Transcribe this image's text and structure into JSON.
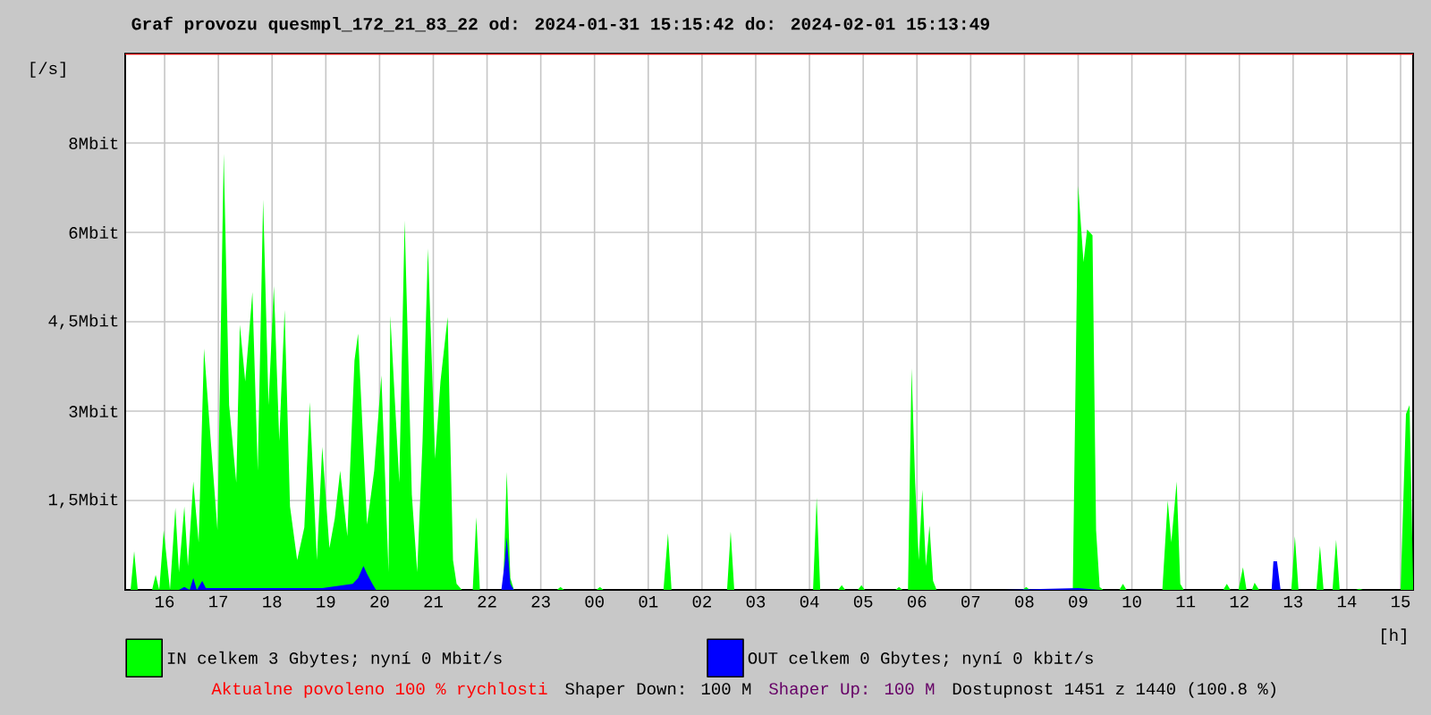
{
  "chart_data": {
    "type": "area",
    "title": "Graf provozu quesmpl_172_21_83_22 od: 2024-01-31 15:15:42 do: 2024-02-01 15:13:49",
    "xlabel": "[h]",
    "ylabel": "[/s]",
    "xlim": [
      "2024-01-31T15:16",
      "2024-02-01T15:14"
    ],
    "xticks": [
      {
        "value": "2024-01-31T16:00",
        "label": "16"
      },
      {
        "value": "2024-01-31T17:00",
        "label": "17"
      },
      {
        "value": "2024-01-31T18:00",
        "label": "18"
      },
      {
        "value": "2024-01-31T19:00",
        "label": "19"
      },
      {
        "value": "2024-01-31T20:00",
        "label": "20"
      },
      {
        "value": "2024-01-31T21:00",
        "label": "21"
      },
      {
        "value": "2024-01-31T22:00",
        "label": "22"
      },
      {
        "value": "2024-01-31T23:00",
        "label": "23"
      },
      {
        "value": "2024-02-01T00:00",
        "label": "00"
      },
      {
        "value": "2024-02-01T01:00",
        "label": "01"
      },
      {
        "value": "2024-02-01T02:00",
        "label": "02"
      },
      {
        "value": "2024-02-01T03:00",
        "label": "03"
      },
      {
        "value": "2024-02-01T04:00",
        "label": "04"
      },
      {
        "value": "2024-02-01T05:00",
        "label": "05"
      },
      {
        "value": "2024-02-01T06:00",
        "label": "06"
      },
      {
        "value": "2024-02-01T07:00",
        "label": "07"
      },
      {
        "value": "2024-02-01T08:00",
        "label": "08"
      },
      {
        "value": "2024-02-01T09:00",
        "label": "09"
      },
      {
        "value": "2024-02-01T10:00",
        "label": "10"
      },
      {
        "value": "2024-02-01T11:00",
        "label": "11"
      },
      {
        "value": "2024-02-01T12:00",
        "label": "12"
      },
      {
        "value": "2024-02-01T13:00",
        "label": "13"
      },
      {
        "value": "2024-02-01T14:00",
        "label": "14"
      },
      {
        "value": "2024-02-01T15:00",
        "label": "15"
      }
    ],
    "ylim": [
      0,
      9
    ],
    "yticks": [
      {
        "value": 1.5,
        "label": "1,5Mbit"
      },
      {
        "value": 3,
        "label": "3Mbit"
      },
      {
        "value": 4.5,
        "label": "4,5Mbit"
      },
      {
        "value": 6,
        "label": "6Mbit"
      },
      {
        "value": 7.5,
        "label": "8Mbit"
      }
    ],
    "grid": true,
    "legend": "bottom left",
    "ref_lines": [
      {
        "axis": "y",
        "value": 9,
        "color": "#ff0000"
      }
    ],
    "annotations": [
      "Aktualne povoleno 100 % rychlosti",
      "Shaper Down: 100 M",
      "Shaper Up: 100 M",
      "Dostupnost 1451 z 1440 (100.8 %)"
    ],
    "series": [
      {
        "name": "IN celkem 3 Gbytes; nyní 0 Mbit/s",
        "color": "#00ff00",
        "x": [
          "2024-01-31T15:16",
          "2024-01-31T15:22",
          "2024-01-31T15:26",
          "2024-01-31T15:30",
          "2024-01-31T15:46",
          "2024-01-31T15:50",
          "2024-01-31T15:54",
          "2024-01-31T15:59",
          "2024-01-31T16:06",
          "2024-01-31T16:12",
          "2024-01-31T16:16",
          "2024-01-31T16:22",
          "2024-01-31T16:26",
          "2024-01-31T16:32",
          "2024-01-31T16:38",
          "2024-01-31T16:44",
          "2024-01-31T16:52",
          "2024-01-31T16:59",
          "2024-01-31T17:06",
          "2024-01-31T17:12",
          "2024-01-31T17:20",
          "2024-01-31T17:24",
          "2024-01-31T17:30",
          "2024-01-31T17:38",
          "2024-01-31T17:44",
          "2024-01-31T17:50",
          "2024-01-31T17:56",
          "2024-01-31T18:02",
          "2024-01-31T18:08",
          "2024-01-31T18:14",
          "2024-01-31T18:20",
          "2024-01-31T18:28",
          "2024-01-31T18:36",
          "2024-01-31T18:42",
          "2024-01-31T18:50",
          "2024-01-31T18:56",
          "2024-01-31T19:04",
          "2024-01-31T19:10",
          "2024-01-31T19:16",
          "2024-01-31T19:24",
          "2024-01-31T19:32",
          "2024-01-31T19:36",
          "2024-01-31T19:46",
          "2024-01-31T19:54",
          "2024-01-31T20:02",
          "2024-01-31T20:10",
          "2024-01-31T20:12",
          "2024-01-31T20:22",
          "2024-01-31T20:28",
          "2024-01-31T20:36",
          "2024-01-31T20:42",
          "2024-01-31T20:48",
          "2024-01-31T20:54",
          "2024-01-31T21:02",
          "2024-01-31T21:08",
          "2024-01-31T21:16",
          "2024-01-31T21:22",
          "2024-01-31T21:26",
          "2024-01-31T21:32",
          "2024-01-31T21:44",
          "2024-01-31T21:48",
          "2024-01-31T21:52",
          "2024-01-31T22:18",
          "2024-01-31T22:22",
          "2024-01-31T22:26",
          "2024-01-31T22:30",
          "2024-01-31T23:18",
          "2024-01-31T23:22",
          "2024-01-31T23:26",
          "2024-02-01T00:02",
          "2024-02-01T00:06",
          "2024-02-01T00:10",
          "2024-02-01T01:17",
          "2024-02-01T01:22",
          "2024-02-01T01:26",
          "2024-02-01T02:28",
          "2024-02-01T02:32",
          "2024-02-01T02:36",
          "2024-02-01T04:04",
          "2024-02-01T04:08",
          "2024-02-01T04:12",
          "2024-02-01T04:32",
          "2024-02-01T04:36",
          "2024-02-01T04:40",
          "2024-02-01T04:54",
          "2024-02-01T04:58",
          "2024-02-01T05:02",
          "2024-02-01T05:36",
          "2024-02-01T05:40",
          "2024-02-01T05:44",
          "2024-02-01T05:50",
          "2024-02-01T05:54",
          "2024-02-01T05:58",
          "2024-02-01T06:02",
          "2024-02-01T06:06",
          "2024-02-01T06:10",
          "2024-02-01T06:14",
          "2024-02-01T06:18",
          "2024-02-01T06:22",
          "2024-02-01T07:58",
          "2024-02-01T08:02",
          "2024-02-01T08:06",
          "2024-02-01T08:54",
          "2024-02-01T09:00",
          "2024-02-01T09:06",
          "2024-02-01T09:10",
          "2024-02-01T09:16",
          "2024-02-01T09:20",
          "2024-02-01T09:24",
          "2024-02-01T09:28",
          "2024-02-01T09:46",
          "2024-02-01T09:50",
          "2024-02-01T09:54",
          "2024-02-01T10:34",
          "2024-02-01T10:40",
          "2024-02-01T10:44",
          "2024-02-01T10:50",
          "2024-02-01T10:54",
          "2024-02-01T10:58",
          "2024-02-01T11:42",
          "2024-02-01T11:46",
          "2024-02-01T11:50",
          "2024-02-01T11:59",
          "2024-02-01T12:04",
          "2024-02-01T12:08",
          "2024-02-01T12:14",
          "2024-02-01T12:17",
          "2024-02-01T12:22",
          "2024-02-01T12:58",
          "2024-02-01T13:02",
          "2024-02-01T13:06",
          "2024-02-01T13:26",
          "2024-02-01T13:30",
          "2024-02-01T13:34",
          "2024-02-01T13:44",
          "2024-02-01T13:48",
          "2024-02-01T13:52",
          "2024-02-01T14:10",
          "2024-02-01T14:14",
          "2024-02-01T14:18",
          "2024-02-01T15:00",
          "2024-02-01T15:06",
          "2024-02-01T15:10",
          "2024-02-01T15:14"
        ],
        "values": [
          0,
          0,
          0.65,
          0,
          0,
          0.25,
          0,
          1.0,
          0,
          1.38,
          0.3,
          1.4,
          0.4,
          1.82,
          0.8,
          4.05,
          2.4,
          1.0,
          7.32,
          3.1,
          1.8,
          4.45,
          3.5,
          5.0,
          2.0,
          6.55,
          3.1,
          5.1,
          2.5,
          4.7,
          1.4,
          0.5,
          1.05,
          3.15,
          0.5,
          2.4,
          0.7,
          1.2,
          2.0,
          0.9,
          3.85,
          4.3,
          1.1,
          2.0,
          3.6,
          0.3,
          4.6,
          1.8,
          6.2,
          1.6,
          0.3,
          2.5,
          5.73,
          2.2,
          3.5,
          4.58,
          0.5,
          0.1,
          0,
          0,
          1.22,
          0,
          0,
          1.98,
          0.2,
          0,
          0,
          0.05,
          0,
          0,
          0.05,
          0,
          0,
          0.95,
          0,
          0,
          0.98,
          0,
          0,
          1.55,
          0,
          0,
          0.08,
          0,
          0,
          0.08,
          0,
          0,
          0.05,
          0,
          0,
          3.72,
          1.8,
          0.5,
          1.68,
          0.4,
          1.08,
          0.15,
          0,
          0,
          0.05,
          0,
          0,
          6.78,
          5.5,
          6.05,
          5.95,
          1.0,
          0.05,
          0,
          0,
          0.1,
          0,
          0,
          1.5,
          0.8,
          1.82,
          0.1,
          0,
          0,
          0.1,
          0,
          0,
          0.38,
          0,
          0,
          0.12,
          0,
          0,
          0.9,
          0,
          0,
          0.74,
          0,
          0,
          0.84,
          0,
          0,
          0.02,
          0,
          0,
          2.95,
          3.1,
          0.1
        ]
      },
      {
        "name": "OUT celkem 0 Gbytes; nyní 0 kbit/s",
        "color": "#0000ff",
        "x": [
          "2024-01-31T15:16",
          "2024-01-31T16:16",
          "2024-01-31T16:22",
          "2024-01-31T16:28",
          "2024-01-31T16:32",
          "2024-01-31T16:36",
          "2024-01-31T16:42",
          "2024-01-31T16:46",
          "2024-01-31T17:56",
          "2024-01-31T18:56",
          "2024-01-31T19:30",
          "2024-01-31T19:36",
          "2024-01-31T19:42",
          "2024-01-31T19:46",
          "2024-01-31T19:52",
          "2024-01-31T19:56",
          "2024-01-31T22:16",
          "2024-01-31T22:20",
          "2024-01-31T22:22",
          "2024-01-31T22:26",
          "2024-01-31T22:30",
          "2024-02-01T07:36",
          "2024-02-01T09:00",
          "2024-02-01T09:24",
          "2024-02-01T12:36",
          "2024-02-01T12:38",
          "2024-02-01T12:42",
          "2024-02-01T12:46",
          "2024-02-01T15:14"
        ],
        "values": [
          0,
          0,
          0.05,
          0,
          0.2,
          0,
          0.15,
          0.03,
          0.03,
          0.03,
          0.1,
          0.2,
          0.4,
          0.27,
          0.1,
          0,
          0,
          0.5,
          0.88,
          0.1,
          0,
          0,
          0.03,
          0,
          0,
          0.48,
          0.48,
          0,
          0
        ]
      }
    ]
  }
}
